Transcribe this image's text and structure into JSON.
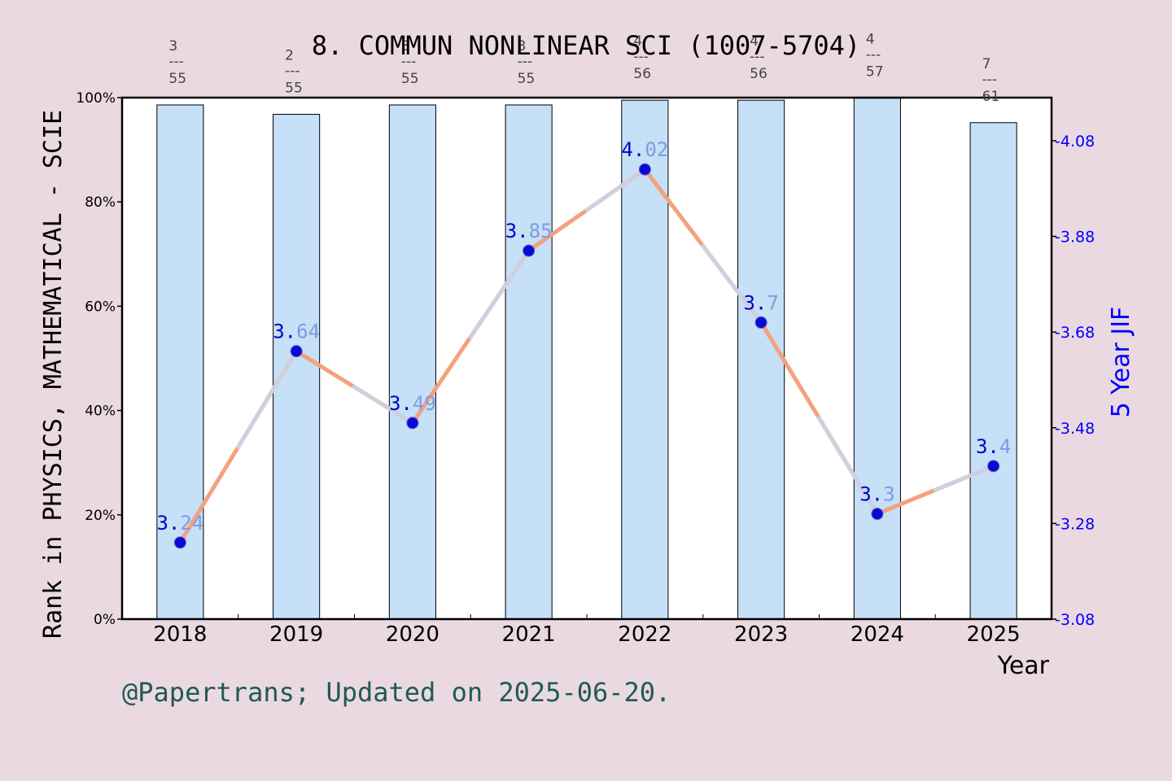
{
  "chart_data": {
    "type": "bar",
    "title": "8. COMMUN NONLINEAR SCI (1007-5704)",
    "xlabel": "Year",
    "ylabel_left": "Rank in PHYSICS, MATHEMATICAL - SCIE",
    "ylabel_right": "5 Year JIF",
    "categories": [
      "2018",
      "2019",
      "2020",
      "2021",
      "2022",
      "2023",
      "2024",
      "2025"
    ],
    "rank_numerators": [
      "3",
      "2",
      "3",
      "3",
      "4",
      "4",
      "4",
      "7"
    ],
    "rank_denominators": [
      "55",
      "55",
      "55",
      "55",
      "56",
      "56",
      "57",
      "61"
    ],
    "bar_percent": [
      98.6,
      96.8,
      98.6,
      98.6,
      99.5,
      99.5,
      99.9,
      95.2
    ],
    "jif_values": [
      3.24,
      3.64,
      3.49,
      3.85,
      4.02,
      3.7,
      3.3,
      3.4
    ],
    "jif_labels": [
      "3.24",
      "3.64",
      "3.49",
      "3.85",
      "4.02",
      "3.7",
      "3.3",
      "3.4"
    ],
    "ylim_left": [
      0,
      100
    ],
    "yticks_left": [
      "0%",
      "20%",
      "40%",
      "60%",
      "80%",
      "100%"
    ],
    "ylim_right": [
      3.08,
      4.17
    ],
    "yticks_right": [
      "3.08",
      "3.28",
      "3.48",
      "3.68",
      "3.88",
      "4.08"
    ],
    "colors": {
      "background": "#ead9e1",
      "plot_bg": "#ffffff",
      "bar_fill": "#c5e0f7",
      "line_main": "#f5a17e",
      "line_overlay": "#cfcfe0",
      "marker": "#0a0ad2",
      "label_dark": "#0000cc",
      "label_light": "#7f9be0",
      "right_axis": "#0000ff",
      "rank_text": "#444444"
    }
  },
  "footer": "@Papertrans; Updated on 2025-06-20."
}
